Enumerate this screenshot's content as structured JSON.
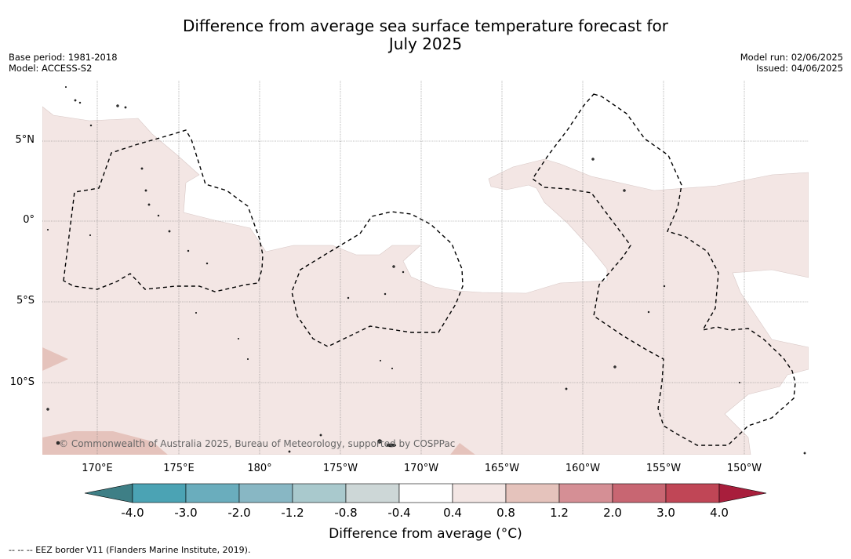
{
  "title": {
    "line1": "Difference from average sea surface temperature forecast for",
    "line2": "July 2025"
  },
  "meta": {
    "base_period": "Base period: 1981-2018",
    "model": "Model: ACCESS-S2",
    "model_run": "Model run: 02/06/2025",
    "issued": "Issued: 04/06/2025"
  },
  "axes": {
    "lat_labels": [
      "5°N",
      "0°",
      "5°S",
      "10°S"
    ],
    "lon_labels": [
      "170°E",
      "175°E",
      "180°",
      "175°W",
      "170°W",
      "165°W",
      "160°W",
      "155°W",
      "150°W"
    ]
  },
  "colorbar": {
    "ticks": [
      "-4.0",
      "-3.0",
      "-2.0",
      "-1.2",
      "-0.8",
      "-0.4",
      "0.4",
      "0.8",
      "1.2",
      "2.0",
      "3.0",
      "4.0"
    ],
    "colors": [
      "#3e7f86",
      "#4ba3b4",
      "#6aadbd",
      "#88b7c4",
      "#a9c9cd",
      "#cdd7d7",
      "#ffffff",
      "#f3e6e4",
      "#e5c3bc",
      "#d58f95",
      "#c86672",
      "#c04656",
      "#a81e3c"
    ],
    "label": "Difference from average (°C)"
  },
  "legend": {
    "eez": "--  --  -- EEZ border V11 (Flanders Marine Institute, 2019)."
  },
  "copyright": "© Commonwealth of Australia 2025, Bureau of Meteorology, supported by COSPPac",
  "colors": {
    "anomaly_light": "#f3e6e4",
    "anomaly_medium": "#e5c3bc",
    "grid": "#666666"
  }
}
